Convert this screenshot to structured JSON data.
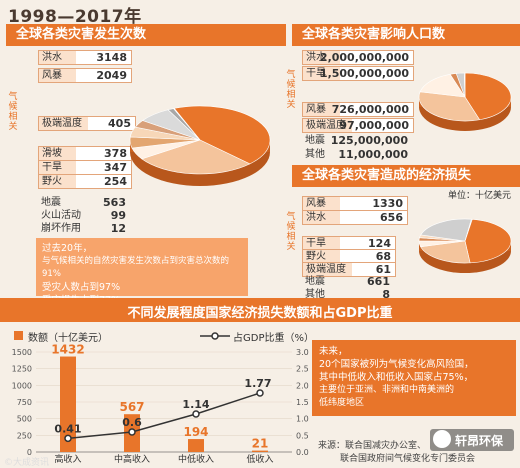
{
  "header": {
    "title": "1998—2017年"
  },
  "panel_occurrences": {
    "title": "全球各类灾害发生次数",
    "climate_label": "气候相关",
    "rows": [
      {
        "label": "洪水",
        "value": "3148"
      },
      {
        "label": "风暴",
        "value": "2049"
      },
      {
        "label": "极端温度",
        "value": "405"
      },
      {
        "label": "滑坡",
        "value": "378"
      },
      {
        "label": "干旱",
        "value": "347"
      },
      {
        "label": "野火",
        "value": "254"
      },
      {
        "label": "地震",
        "value": "563"
      },
      {
        "label": "火山活动",
        "value": "99"
      },
      {
        "label": "崩坏作用",
        "value": "12"
      }
    ]
  },
  "panel_people": {
    "title": "全球各类灾害影响人口数",
    "climate_label": "气候相关",
    "rows": [
      {
        "label": "洪水",
        "value": "2,000,000,000"
      },
      {
        "label": "干旱",
        "value": "1,500,000,000"
      },
      {
        "label": "风暴",
        "value": "726,000,000"
      },
      {
        "label": "极端温度",
        "value": "97,000,000"
      },
      {
        "label": "地震",
        "value": "125,000,000"
      },
      {
        "label": "其他",
        "value": "11,000,000"
      }
    ]
  },
  "panel_losses": {
    "title": "全球各类灾害造成的经济损失",
    "unit": "单位：十亿美元",
    "climate_label": "气候相关",
    "rows": [
      {
        "label": "风暴",
        "value": "1330"
      },
      {
        "label": "洪水",
        "value": "656"
      },
      {
        "label": "干旱",
        "value": "124"
      },
      {
        "label": "野火",
        "value": "68"
      },
      {
        "label": "极端温度",
        "value": "61"
      },
      {
        "label": "地震",
        "value": "661"
      },
      {
        "label": "其他",
        "value": "8"
      }
    ]
  },
  "note_left": {
    "line1": "过去20年，",
    "line2": "与气候相关的自然灾害发生次数占到灾害总次数的91%",
    "line3": "受灾人数占到97%",
    "line4": "受灾损失占到77%"
  },
  "bottom": {
    "title": "不同发展程度国家经济损失数额和占GDP比重",
    "legend_bar": "数额（十亿美元）",
    "legend_line": "占GDP比重（%）",
    "note": {
      "line1": "未来，",
      "line2": "20个国家被列为气候变化高风险国，",
      "line3": "其中中低收入和低收入国家占75%，",
      "line4": "主要位于亚洲、非洲和中南美洲的",
      "line5": "低纬度地区"
    },
    "source_line1": "来源：联合国减灾办公室、",
    "source_line2": "联合国政府间气候变化专门委员会"
  },
  "watermark": {
    "brand": "轩昂环保",
    "corner": "©大成资讯"
  },
  "colors": {
    "accent": "#e8752a",
    "light": "#f4c49c",
    "pale": "#fbe1cc",
    "bar": "#e8752a",
    "line": "#333333"
  },
  "chart_data": [
    {
      "type": "pie",
      "title": "全球各类灾害发生次数",
      "categories": [
        "洪水",
        "风暴",
        "极端温度",
        "滑坡",
        "干旱",
        "野火",
        "地震",
        "火山活动",
        "崩坏作用"
      ],
      "values": [
        3148,
        2049,
        405,
        378,
        347,
        254,
        563,
        99,
        12
      ]
    },
    {
      "type": "pie",
      "title": "全球各类灾害影响人口数",
      "categories": [
        "洪水",
        "干旱",
        "风暴",
        "极端温度",
        "地震",
        "其他"
      ],
      "values": [
        2000000000,
        1500000000,
        726000000,
        97000000,
        125000000,
        11000000
      ]
    },
    {
      "type": "pie",
      "title": "全球各类灾害造成的经济损失",
      "categories": [
        "风暴",
        "洪水",
        "干旱",
        "野火",
        "极端温度",
        "地震",
        "其他"
      ],
      "values": [
        1330,
        656,
        124,
        68,
        61,
        661,
        8
      ]
    },
    {
      "type": "bar",
      "title": "不同发展程度国家经济损失数额和占GDP比重",
      "categories": [
        "高收入",
        "中高收入",
        "中低收入",
        "低收入"
      ],
      "series": [
        {
          "name": "数额（十亿美元）",
          "values": [
            1432,
            567,
            194,
            21
          ]
        },
        {
          "name": "占GDP比重（%）",
          "values": [
            0.41,
            0.6,
            1.14,
            1.77
          ]
        }
      ],
      "ylim": [
        0,
        1500
      ],
      "y_ticks": [
        0,
        250,
        500,
        750,
        1000,
        1250,
        1500
      ],
      "y2lim": [
        0,
        3.0
      ],
      "y2_ticks": [
        "0.0",
        "0.5",
        "1.0",
        "1.5",
        "2.0",
        "2.5",
        "3.0"
      ],
      "legend": "top"
    }
  ]
}
